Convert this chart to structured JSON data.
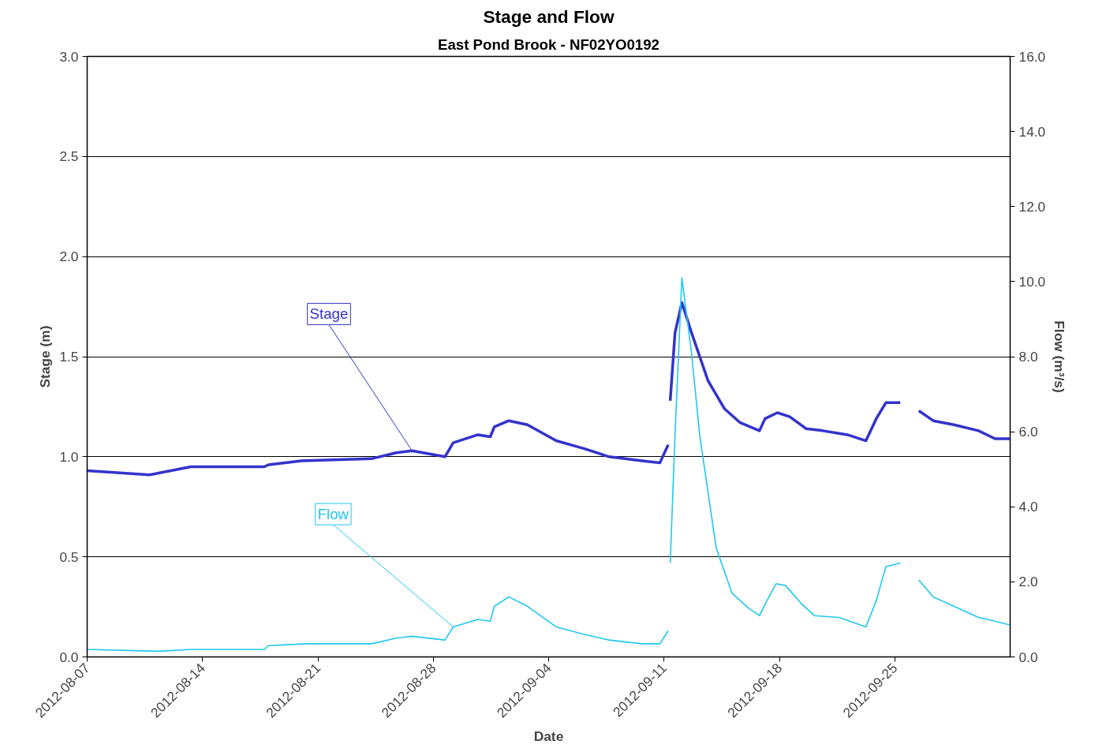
{
  "chart_data": {
    "type": "line",
    "title": "Stage and Flow",
    "subtitle": "East Pond Brook - NF02YO0192",
    "xlabel": "Date",
    "ylabel": "Stage (m)",
    "y2label": "Flow (m³/s)",
    "xlim": [
      "2012-08-07",
      "2012-10-02"
    ],
    "xticks": [
      "2012-08-07",
      "2012-08-14",
      "2012-08-21",
      "2012-08-28",
      "2012-09-04",
      "2012-09-11",
      "2012-09-18",
      "2012-09-25"
    ],
    "ylim": [
      0,
      3
    ],
    "yticks": [
      {
        "value": 0,
        "label": "0.0"
      },
      {
        "value": 0.5,
        "label": "0.5"
      },
      {
        "value": 1,
        "label": "1.0"
      },
      {
        "value": 1.5,
        "label": "1.5"
      },
      {
        "value": 2,
        "label": "2.0"
      },
      {
        "value": 2.5,
        "label": "2.5"
      },
      {
        "value": 3,
        "label": "3.0"
      }
    ],
    "y2lim": [
      0,
      16
    ],
    "y2ticks": [
      {
        "value": 0,
        "label": "0.0"
      },
      {
        "value": 2,
        "label": "2.0"
      },
      {
        "value": 4,
        "label": "4.0"
      },
      {
        "value": 6,
        "label": "6.0"
      },
      {
        "value": 8,
        "label": "8.0"
      },
      {
        "value": 10,
        "label": "10.0"
      },
      {
        "value": 12,
        "label": "12.0"
      },
      {
        "value": 14,
        "label": "14.0"
      },
      {
        "value": 16,
        "label": "16.0"
      }
    ],
    "grid": "y",
    "line_style": "solid",
    "marker": "none",
    "series": [
      {
        "name": "Stage",
        "color": "#3333cc",
        "x": [
          "2012-08-07T00:00",
          "2012-08-10T19:00",
          "2012-08-13T07:00",
          "2012-08-17T18:00",
          "2012-08-18T00:00",
          "2012-08-20T00:00",
          "2012-08-24T06:00",
          "2012-08-25T18:00",
          "2012-08-26T17:00",
          "2012-08-28T17:00",
          "2012-08-29T05:00",
          "2012-08-30T17:00",
          "2012-08-31T11:00",
          "2012-08-31T17:00",
          "2012-09-01T14:00",
          "2012-09-02T17:00",
          "2012-09-04T11:00",
          "2012-09-06T04:00",
          "2012-09-07T16:00",
          "2012-09-09T16:00",
          "2012-09-10T18:00",
          "2012-09-11T06:00",
          "2012-09-11T08:00",
          "2012-09-11T09:00",
          "2012-09-11T16:00",
          "2012-09-12T02:00",
          "2012-09-12T16:00",
          "2012-09-13T16:00",
          "2012-09-14T16:00",
          "2012-09-15T15:00",
          "2012-09-16T19:00",
          "2012-09-17T03:00",
          "2012-09-17T21:00",
          "2012-09-18T15:00",
          "2012-09-19T15:00",
          "2012-09-20T15:00",
          "2012-09-22T03:00",
          "2012-09-23T06:00",
          "2012-09-23T21:00",
          "2012-09-24T11:00",
          "2012-09-25T08:00",
          "2012-09-26T00:00",
          "2012-09-26T11:00",
          "2012-09-27T08:00",
          "2012-09-28T14:00",
          "2012-09-30T02:00",
          "2012-10-01T02:00",
          "2012-10-02T00:00"
        ],
        "values": [
          0.93,
          0.91,
          0.95,
          0.95,
          0.96,
          0.98,
          0.99,
          1.02,
          1.03,
          1.0,
          1.07,
          1.11,
          1.1,
          1.15,
          1.18,
          1.16,
          1.08,
          1.04,
          1.0,
          0.98,
          0.97,
          1.06,
          null,
          1.28,
          1.62,
          1.77,
          1.62,
          1.38,
          1.24,
          1.17,
          1.13,
          1.19,
          1.22,
          1.2,
          1.14,
          1.13,
          1.11,
          1.08,
          1.19,
          1.27,
          1.27,
          null,
          1.23,
          1.18,
          1.16,
          1.13,
          1.09,
          1.09
        ]
      },
      {
        "name": "Flow",
        "color": "#1ec8f0",
        "axis": "y2",
        "x": [
          "2012-08-07T00:00",
          "2012-08-11T09:00",
          "2012-08-13T07:00",
          "2012-08-17T18:00",
          "2012-08-18T00:00",
          "2012-08-20T06:00",
          "2012-08-24T06:00",
          "2012-08-25T18:00",
          "2012-08-26T17:00",
          "2012-08-28T17:00",
          "2012-08-29T05:00",
          "2012-08-30T17:00",
          "2012-08-31T11:00",
          "2012-08-31T17:00",
          "2012-09-01T14:00",
          "2012-09-02T17:00",
          "2012-09-04T11:00",
          "2012-09-06T04:00",
          "2012-09-07T16:00",
          "2012-09-09T16:00",
          "2012-09-10T18:00",
          "2012-09-11T06:00",
          "2012-09-11T08:00",
          "2012-09-11T09:00",
          "2012-09-11T16:00",
          "2012-09-12T02:00",
          "2012-09-12T16:00",
          "2012-09-13T04:00",
          "2012-09-14T04:00",
          "2012-09-15T03:00",
          "2012-09-16T03:00",
          "2012-09-16T19:00",
          "2012-09-17T03:00",
          "2012-09-17T19:00",
          "2012-09-18T09:00",
          "2012-09-19T09:00",
          "2012-09-20T03:00",
          "2012-09-21T15:00",
          "2012-09-23T06:00",
          "2012-09-23T21:00",
          "2012-09-24T11:00",
          "2012-09-25T08:00",
          "2012-09-26T00:00",
          "2012-09-26T11:00",
          "2012-09-27T08:00",
          "2012-09-28T14:00",
          "2012-09-30T02:00",
          "2012-10-01T02:00",
          "2012-10-02T00:00"
        ],
        "values": [
          0.2,
          0.15,
          0.2,
          0.2,
          0.3,
          0.35,
          0.35,
          0.5,
          0.55,
          0.45,
          0.8,
          1.0,
          0.95,
          1.35,
          1.6,
          1.35,
          0.8,
          0.6,
          0.45,
          0.35,
          0.35,
          0.7,
          null,
          2.5,
          5.9,
          10.1,
          8.1,
          5.9,
          2.9,
          1.7,
          1.3,
          1.1,
          1.4,
          1.95,
          1.9,
          1.4,
          1.1,
          1.05,
          0.8,
          1.5,
          2.4,
          2.5,
          null,
          2.05,
          1.6,
          1.35,
          1.05,
          0.95,
          0.85
        ]
      }
    ]
  }
}
